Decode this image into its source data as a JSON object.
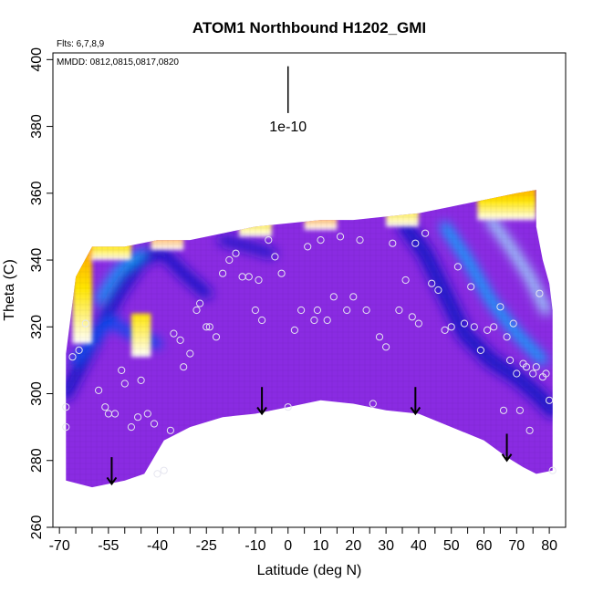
{
  "chart_data": {
    "type": "heatmap",
    "title": "ATOM1 Northbound H1202_GMI",
    "flights_note": "Flts: 6,7,8,9",
    "dates_note": "MMDD: 0812,0815,0817,0820",
    "xlabel": "Latitude (deg N)",
    "ylabel": "Theta (C)",
    "xlim": [
      -72,
      85
    ],
    "ylim": [
      260,
      402
    ],
    "x_ticks": [
      -70,
      -55,
      -40,
      -25,
      -10,
      0,
      10,
      20,
      30,
      40,
      50,
      60,
      70,
      80
    ],
    "x_tick_labels": [
      "-70",
      "-55",
      "-40",
      "-25",
      "-10",
      "0",
      "10",
      "20",
      "30",
      "40",
      "50",
      "60",
      "70",
      "80"
    ],
    "x_minor_ticks": [
      -65,
      -60,
      -50,
      -45,
      -35,
      -30,
      -20,
      -15,
      -5,
      5,
      15,
      25,
      35,
      45,
      55,
      65,
      75
    ],
    "y_ticks": [
      260,
      280,
      300,
      320,
      340,
      360,
      380,
      400
    ],
    "y_tick_labels": [
      "260",
      "280",
      "300",
      "320",
      "340",
      "360",
      "380",
      "400"
    ],
    "scale_bar": {
      "label": "1e-10",
      "x": 0,
      "y_bottom": 384,
      "y_top": 398
    },
    "colorscale": [
      "#8a2be2",
      "#1414c8",
      "#0050f0",
      "#00b4ff",
      "#a0e6ff",
      "#ffffff",
      "#ffe600",
      "#ff8c00",
      "#ff0000",
      "#b40000"
    ],
    "field_region": {
      "top": [
        [
          -68,
          312
        ],
        [
          -65,
          335
        ],
        [
          -60,
          344
        ],
        [
          -50,
          344
        ],
        [
          -40,
          346
        ],
        [
          -30,
          346
        ],
        [
          -20,
          348
        ],
        [
          -10,
          350
        ],
        [
          0,
          351
        ],
        [
          10,
          352
        ],
        [
          20,
          352
        ],
        [
          30,
          353
        ],
        [
          40,
          354
        ],
        [
          50,
          356
        ],
        [
          60,
          358
        ],
        [
          70,
          360
        ],
        [
          76,
          361
        ],
        [
          76,
          350
        ],
        [
          78,
          340
        ],
        [
          80,
          333
        ],
        [
          81,
          325
        ],
        [
          81,
          308
        ]
      ],
      "bottom": [
        [
          -68,
          274
        ],
        [
          -60,
          272
        ],
        [
          -50,
          274
        ],
        [
          -44,
          276
        ],
        [
          -38,
          286
        ],
        [
          -30,
          290
        ],
        [
          -20,
          293
        ],
        [
          -10,
          294
        ],
        [
          0,
          296
        ],
        [
          10,
          298
        ],
        [
          20,
          297
        ],
        [
          30,
          295
        ],
        [
          40,
          294
        ],
        [
          50,
          290
        ],
        [
          60,
          286
        ],
        [
          67,
          281
        ],
        [
          72,
          278
        ],
        [
          76,
          276
        ],
        [
          81,
          277
        ]
      ]
    },
    "features": [
      {
        "type": "ridge",
        "color": "#1414c8",
        "width": 14,
        "points": [
          [
            -68,
            300
          ],
          [
            -60,
            315
          ],
          [
            -52,
            330
          ],
          [
            -45,
            340
          ],
          [
            -40,
            342
          ]
        ]
      },
      {
        "type": "ridge",
        "color": "#0050f0",
        "width": 10,
        "points": [
          [
            -65,
            310
          ],
          [
            -55,
            322
          ],
          [
            -48,
            318
          ],
          [
            -40,
            315
          ]
        ]
      },
      {
        "type": "ridge",
        "color": "#00b4ff",
        "width": 8,
        "points": [
          [
            -58,
            328
          ],
          [
            -52,
            337
          ],
          [
            -45,
            342
          ]
        ]
      },
      {
        "type": "ridge",
        "color": "#1414c8",
        "width": 12,
        "points": [
          [
            -38,
            342
          ],
          [
            -32,
            336
          ],
          [
            -25,
            330
          ]
        ]
      },
      {
        "type": "ridge",
        "color": "#1414c8",
        "width": 16,
        "points": [
          [
            36,
            350
          ],
          [
            42,
            342
          ],
          [
            48,
            330
          ],
          [
            54,
            318
          ],
          [
            62,
            310
          ],
          [
            70,
            305
          ],
          [
            76,
            300
          ],
          [
            81,
            295
          ]
        ]
      },
      {
        "type": "ridge",
        "color": "#00b4ff",
        "width": 10,
        "points": [
          [
            48,
            350
          ],
          [
            55,
            340
          ],
          [
            62,
            328
          ],
          [
            70,
            318
          ],
          [
            78,
            310
          ]
        ]
      },
      {
        "type": "ridge",
        "color": "#a0e6ff",
        "width": 10,
        "points": [
          [
            62,
            352
          ],
          [
            68,
            344
          ],
          [
            74,
            335
          ],
          [
            79,
            325
          ]
        ]
      },
      {
        "type": "ridge",
        "color": "#1414c8",
        "width": 10,
        "points": [
          [
            -20,
            346
          ],
          [
            -12,
            344
          ],
          [
            -5,
            342
          ]
        ]
      }
    ],
    "top_edge_bands": [
      {
        "x": [
          -60,
          -48
        ],
        "theta": [
          340,
          345
        ],
        "colors": [
          "#ff0000",
          "#ff8c00",
          "#ffe600",
          "#ffffff"
        ]
      },
      {
        "x": [
          -42,
          -32
        ],
        "theta": [
          343,
          347
        ],
        "colors": [
          "#ff0000",
          "#ff8c00",
          "#ffffff"
        ]
      },
      {
        "x": [
          -15,
          -5
        ],
        "theta": [
          347,
          351
        ],
        "colors": [
          "#ff0000",
          "#ffe600",
          "#ffffff"
        ]
      },
      {
        "x": [
          5,
          15
        ],
        "theta": [
          349,
          353
        ],
        "colors": [
          "#ff0000",
          "#ff8c00",
          "#ffffff"
        ]
      },
      {
        "x": [
          30,
          40
        ],
        "theta": [
          350,
          355
        ],
        "colors": [
          "#ff0000",
          "#ffe600",
          "#ffffff"
        ]
      },
      {
        "x": [
          58,
          76
        ],
        "theta": [
          352,
          361
        ],
        "colors": [
          "#ff0000",
          "#ff8c00",
          "#ffe600",
          "#ffffff"
        ]
      }
    ],
    "left_edge_band": {
      "x": [
        -66,
        -60
      ],
      "theta": [
        315,
        340
      ],
      "colors": [
        "#ff8c00",
        "#ffe600",
        "#ffffff"
      ]
    },
    "inset_feature": {
      "x": [
        -48,
        -42
      ],
      "theta": [
        311,
        316
      ],
      "colors": [
        "#ffe600",
        "#ffffff"
      ]
    },
    "observation_points": [
      [
        -68,
        296
      ],
      [
        -68,
        290
      ],
      [
        -66,
        311
      ],
      [
        -64,
        313
      ],
      [
        -62,
        321
      ],
      [
        -58,
        301
      ],
      [
        -56,
        296
      ],
      [
        -55,
        294
      ],
      [
        -53,
        294
      ],
      [
        -51,
        307
      ],
      [
        -50,
        303
      ],
      [
        -48,
        290
      ],
      [
        -46,
        293
      ],
      [
        -45,
        304
      ],
      [
        -43,
        294
      ],
      [
        -41,
        291
      ],
      [
        -40,
        276
      ],
      [
        -38,
        277
      ],
      [
        -36,
        289
      ],
      [
        -35,
        318
      ],
      [
        -33,
        316
      ],
      [
        -32,
        308
      ],
      [
        -30,
        312
      ],
      [
        -28,
        325
      ],
      [
        -27,
        327
      ],
      [
        -25,
        320
      ],
      [
        -24,
        320
      ],
      [
        -22,
        317
      ],
      [
        -20,
        336
      ],
      [
        -18,
        340
      ],
      [
        -16,
        342
      ],
      [
        -14,
        335
      ],
      [
        -12,
        335
      ],
      [
        -10,
        325
      ],
      [
        -9,
        334
      ],
      [
        -8,
        322
      ],
      [
        -6,
        346
      ],
      [
        -4,
        341
      ],
      [
        -2,
        336
      ],
      [
        0,
        296
      ],
      [
        2,
        319
      ],
      [
        4,
        325
      ],
      [
        6,
        344
      ],
      [
        8,
        322
      ],
      [
        9,
        325
      ],
      [
        10,
        346
      ],
      [
        12,
        322
      ],
      [
        14,
        329
      ],
      [
        16,
        347
      ],
      [
        18,
        325
      ],
      [
        20,
        329
      ],
      [
        22,
        346
      ],
      [
        24,
        325
      ],
      [
        26,
        297
      ],
      [
        28,
        317
      ],
      [
        30,
        314
      ],
      [
        32,
        345
      ],
      [
        34,
        325
      ],
      [
        36,
        334
      ],
      [
        38,
        323
      ],
      [
        39,
        345
      ],
      [
        40,
        321
      ],
      [
        42,
        348
      ],
      [
        44,
        333
      ],
      [
        46,
        331
      ],
      [
        48,
        319
      ],
      [
        50,
        320
      ],
      [
        52,
        338
      ],
      [
        54,
        321
      ],
      [
        56,
        332
      ],
      [
        57,
        320
      ],
      [
        59,
        313
      ],
      [
        61,
        319
      ],
      [
        63,
        320
      ],
      [
        65,
        326
      ],
      [
        66,
        295
      ],
      [
        67,
        317
      ],
      [
        68,
        310
      ],
      [
        69,
        321
      ],
      [
        70,
        306
      ],
      [
        71,
        295
      ],
      [
        72,
        309
      ],
      [
        73,
        308
      ],
      [
        74,
        289
      ],
      [
        75,
        306
      ],
      [
        76,
        308
      ],
      [
        77,
        330
      ],
      [
        78,
        305
      ],
      [
        79,
        306
      ],
      [
        80,
        298
      ],
      [
        81,
        277
      ]
    ],
    "arrows": [
      {
        "x": -54,
        "theta_top": 281,
        "theta_tip": 273
      },
      {
        "x": -8,
        "theta_top": 302,
        "theta_tip": 294
      },
      {
        "x": 39,
        "theta_top": 302,
        "theta_tip": 294
      },
      {
        "x": 67,
        "theta_top": 288,
        "theta_tip": 280
      }
    ]
  }
}
